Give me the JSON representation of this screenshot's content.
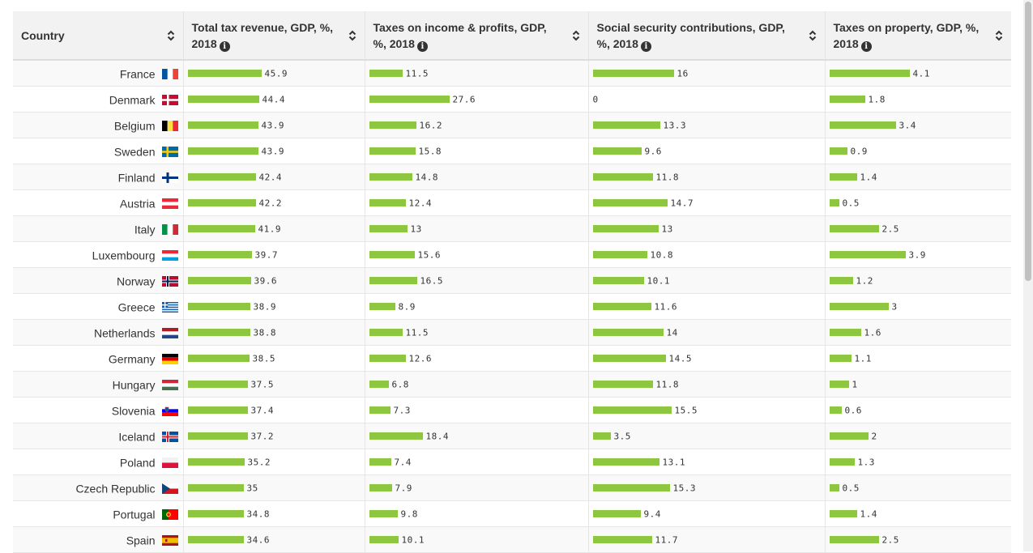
{
  "table": {
    "headers": [
      {
        "label": "Country",
        "info": false
      },
      {
        "label": "Total tax revenue, GDP, %, 2018",
        "info": true
      },
      {
        "label": "Taxes on income & profits, GDP, %, 2018",
        "info": true
      },
      {
        "label": "Social security contributions, GDP, %, 2018",
        "info": true
      },
      {
        "label": "Taxes on property, GDP, %, 2018",
        "info": true
      }
    ],
    "rows": [
      {
        "country": "France",
        "flag": "france-flag-icon",
        "values": [
          45.9,
          11.5,
          16,
          4.1
        ],
        "labels": [
          "45.9",
          "11.5",
          "16",
          "4.1"
        ]
      },
      {
        "country": "Denmark",
        "flag": "denmark-flag-icon",
        "values": [
          44.4,
          27.6,
          0,
          1.8
        ],
        "labels": [
          "44.4",
          "27.6",
          "0",
          "1.8"
        ]
      },
      {
        "country": "Belgium",
        "flag": "belgium-flag-icon",
        "values": [
          43.9,
          16.2,
          13.3,
          3.4
        ],
        "labels": [
          "43.9",
          "16.2",
          "13.3",
          "3.4"
        ]
      },
      {
        "country": "Sweden",
        "flag": "sweden-flag-icon",
        "values": [
          43.9,
          15.8,
          9.6,
          0.9
        ],
        "labels": [
          "43.9",
          "15.8",
          "9.6",
          "0.9"
        ]
      },
      {
        "country": "Finland",
        "flag": "finland-flag-icon",
        "values": [
          42.4,
          14.8,
          11.8,
          1.4
        ],
        "labels": [
          "42.4",
          "14.8",
          "11.8",
          "1.4"
        ]
      },
      {
        "country": "Austria",
        "flag": "austria-flag-icon",
        "values": [
          42.2,
          12.4,
          14.7,
          0.5
        ],
        "labels": [
          "42.2",
          "12.4",
          "14.7",
          "0.5"
        ]
      },
      {
        "country": "Italy",
        "flag": "italy-flag-icon",
        "values": [
          41.9,
          13,
          13,
          2.5
        ],
        "labels": [
          "41.9",
          "13",
          "13",
          "2.5"
        ]
      },
      {
        "country": "Luxembourg",
        "flag": "luxembourg-flag-icon",
        "values": [
          39.7,
          15.6,
          10.8,
          3.9
        ],
        "labels": [
          "39.7",
          "15.6",
          "10.8",
          "3.9"
        ]
      },
      {
        "country": "Norway",
        "flag": "norway-flag-icon",
        "values": [
          39.6,
          16.5,
          10.1,
          1.2
        ],
        "labels": [
          "39.6",
          "16.5",
          "10.1",
          "1.2"
        ]
      },
      {
        "country": "Greece",
        "flag": "greece-flag-icon",
        "values": [
          38.9,
          8.9,
          11.6,
          3
        ],
        "labels": [
          "38.9",
          "8.9",
          "11.6",
          "3"
        ]
      },
      {
        "country": "Netherlands",
        "flag": "netherlands-flag-icon",
        "values": [
          38.8,
          11.5,
          14,
          1.6
        ],
        "labels": [
          "38.8",
          "11.5",
          "14",
          "1.6"
        ]
      },
      {
        "country": "Germany",
        "flag": "germany-flag-icon",
        "values": [
          38.5,
          12.6,
          14.5,
          1.1
        ],
        "labels": [
          "38.5",
          "12.6",
          "14.5",
          "1.1"
        ]
      },
      {
        "country": "Hungary",
        "flag": "hungary-flag-icon",
        "values": [
          37.5,
          6.8,
          11.8,
          1
        ],
        "labels": [
          "37.5",
          "6.8",
          "11.8",
          "1"
        ]
      },
      {
        "country": "Slovenia",
        "flag": "slovenia-flag-icon",
        "values": [
          37.4,
          7.3,
          15.5,
          0.6
        ],
        "labels": [
          "37.4",
          "7.3",
          "15.5",
          "0.6"
        ]
      },
      {
        "country": "Iceland",
        "flag": "iceland-flag-icon",
        "values": [
          37.2,
          18.4,
          3.5,
          2
        ],
        "labels": [
          "37.2",
          "18.4",
          "3.5",
          "2"
        ]
      },
      {
        "country": "Poland",
        "flag": "poland-flag-icon",
        "values": [
          35.2,
          7.4,
          13.1,
          1.3
        ],
        "labels": [
          "35.2",
          "7.4",
          "13.1",
          "1.3"
        ]
      },
      {
        "country": "Czech Republic",
        "flag": "czech-republic-flag-icon",
        "values": [
          35,
          7.9,
          15.3,
          0.5
        ],
        "labels": [
          "35",
          "7.9",
          "15.3",
          "0.5"
        ]
      },
      {
        "country": "Portugal",
        "flag": "portugal-flag-icon",
        "values": [
          34.8,
          9.8,
          9.4,
          1.4
        ],
        "labels": [
          "34.8",
          "9.8",
          "9.4",
          "1.4"
        ]
      },
      {
        "country": "Spain",
        "flag": "spain-flag-icon",
        "values": [
          34.6,
          10.1,
          11.7,
          2.5
        ],
        "labels": [
          "34.6",
          "10.1",
          "11.7",
          "2.5"
        ]
      }
    ],
    "bar_color": "#8dc63f"
  }
}
